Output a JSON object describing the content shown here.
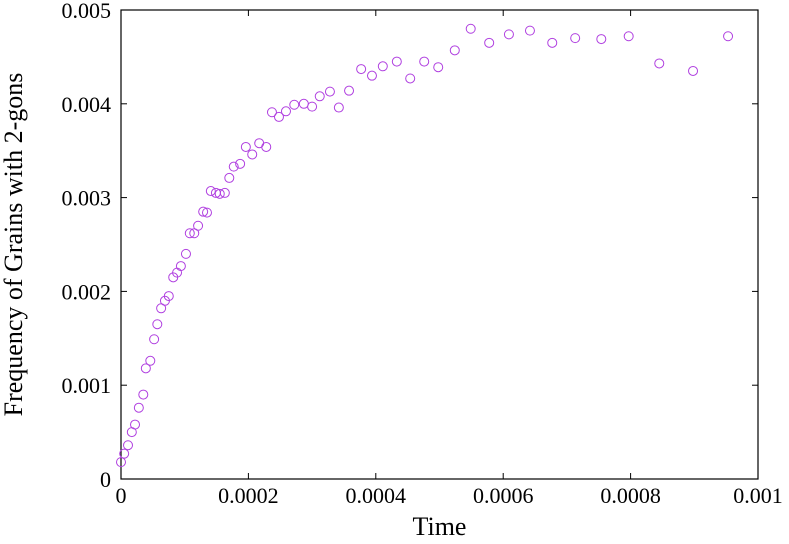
{
  "chart_data": {
    "type": "scatter",
    "x_label": "Time",
    "y_label": "Frequency of Grains with 2-gons",
    "color": "#b040e0",
    "xlim": [
      0,
      0.001
    ],
    "ylim": [
      0,
      0.005
    ],
    "xticks": [
      0,
      0.0002,
      0.0004,
      0.0006,
      0.0008,
      0.001
    ],
    "yticks": [
      0,
      0.001,
      0.002,
      0.003,
      0.004,
      0.005
    ],
    "x": [
      0,
      5e-06,
      1.1e-05,
      1.7e-05,
      2.2e-05,
      2.8e-05,
      3.5e-05,
      3.9e-05,
      4.6e-05,
      5.2e-05,
      5.7e-05,
      6.3e-05,
      6.9e-05,
      7.5e-05,
      8.2e-05,
      8.8e-05,
      9.4e-05,
      0.000102,
      0.000108,
      0.000115,
      0.000121,
      0.000129,
      0.000135,
      0.000141,
      0.000149,
      0.000155,
      0.000163,
      0.00017,
      0.000177,
      0.000187,
      0.000196,
      0.000206,
      0.000217,
      0.000228,
      0.000237,
      0.000248,
      0.000259,
      0.000272,
      0.000287,
      0.0003,
      0.000312,
      0.000328,
      0.000342,
      0.000358,
      0.000377,
      0.000394,
      0.000411,
      0.000433,
      0.000454,
      0.000476,
      0.000498,
      0.000524,
      0.000549,
      0.000578,
      0.000609,
      0.000642,
      0.000677,
      0.000713,
      0.000754,
      0.000797,
      0.000845,
      0.000898,
      0.000953
    ],
    "values": [
      0.00018,
      0.00027,
      0.00036,
      0.0005,
      0.00058,
      0.00076,
      0.0009,
      0.00118,
      0.00126,
      0.00149,
      0.00165,
      0.00182,
      0.0019,
      0.00195,
      0.00215,
      0.0022,
      0.00227,
      0.0024,
      0.00262,
      0.00262,
      0.0027,
      0.00285,
      0.00284,
      0.00307,
      0.00305,
      0.00304,
      0.00305,
      0.00321,
      0.00333,
      0.00336,
      0.00354,
      0.00346,
      0.00358,
      0.00354,
      0.00391,
      0.00386,
      0.00392,
      0.00399,
      0.004,
      0.00397,
      0.00408,
      0.00413,
      0.00396,
      0.00414,
      0.00437,
      0.0043,
      0.0044,
      0.00445,
      0.00427,
      0.00445,
      0.00439,
      0.00457,
      0.0048,
      0.00465,
      0.00474,
      0.00478,
      0.00465,
      0.0047,
      0.00469,
      0.00472,
      0.00443,
      0.00435,
      0.00472
    ]
  }
}
